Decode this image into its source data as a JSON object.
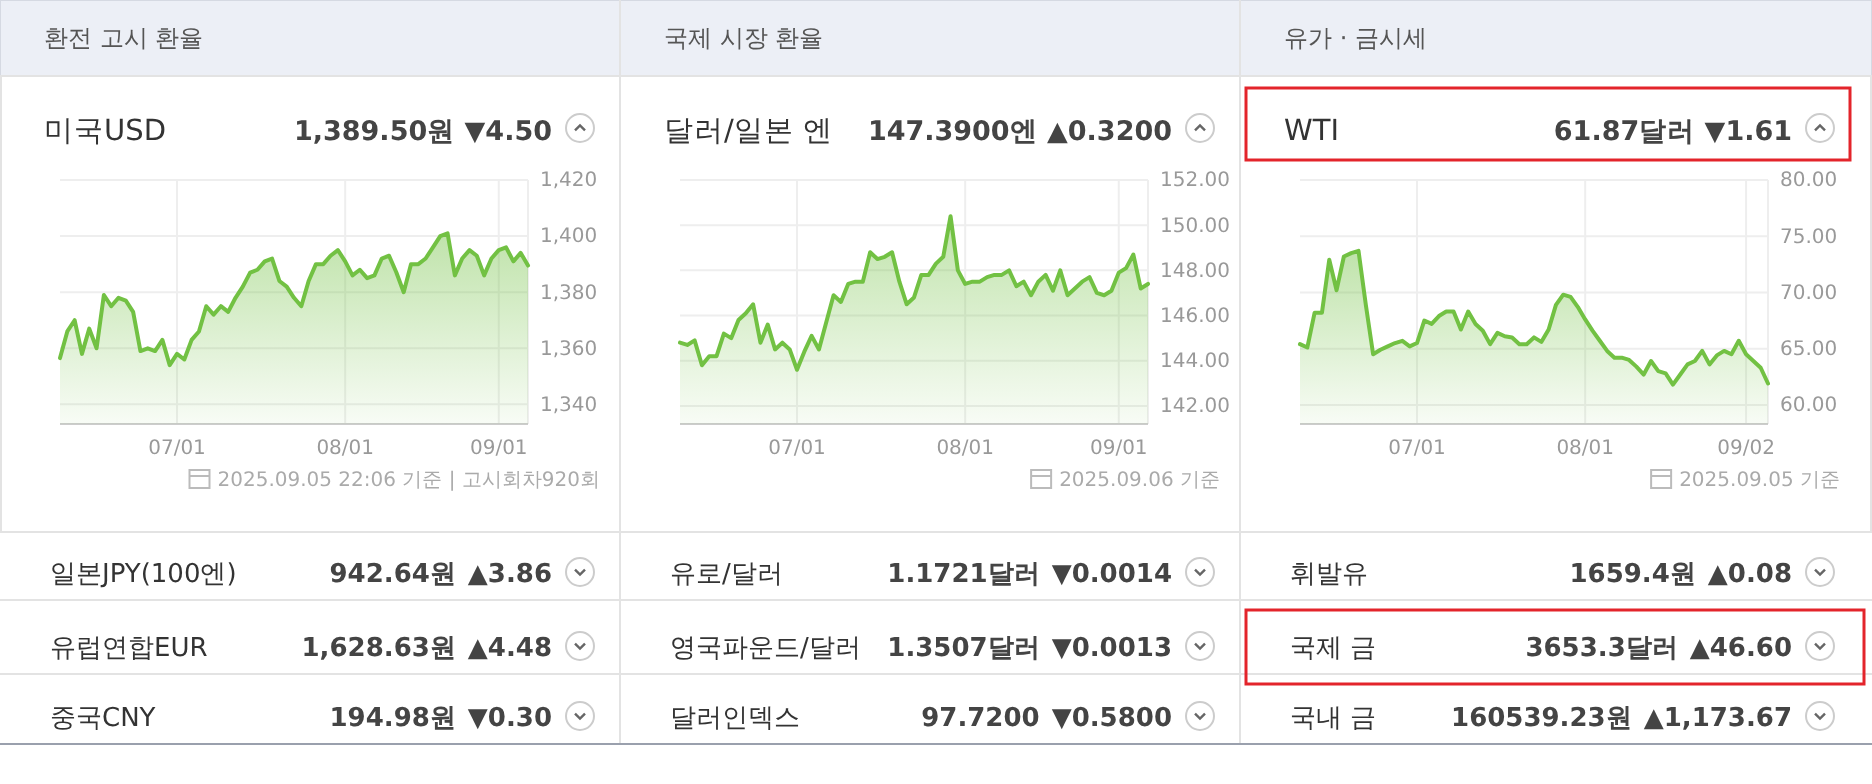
{
  "chart_data": [
    {
      "type": "area",
      "title": "미국USD",
      "subtitle": "1,389.50원 ▼4.50",
      "annotations": [
        "환전 고시 환율",
        "2025.09.05 22:06 기준 | 고시회차920회"
      ],
      "categories": [
        null,
        null,
        null,
        null,
        null,
        null,
        null,
        null,
        null,
        null,
        null,
        null,
        null,
        null,
        null,
        null,
        "07/01",
        null,
        null,
        null,
        null,
        null,
        null,
        null,
        null,
        null,
        null,
        null,
        null,
        null,
        null,
        null,
        null,
        null,
        null,
        null,
        null,
        null,
        null,
        "08/01",
        null,
        null,
        null,
        null,
        null,
        null,
        null,
        null,
        null,
        null,
        null,
        null,
        null,
        null,
        null,
        null,
        null,
        null,
        null,
        null,
        "09/01",
        null,
        null,
        null,
        null
      ],
      "series": [
        {
          "color": "#72c143",
          "values": [
            1356.5,
            1366,
            1370,
            1358,
            1367,
            1360,
            1379,
            1375,
            1378,
            1377,
            1373,
            1359,
            1360,
            1359,
            1363,
            1354,
            1358,
            1356,
            1363,
            1366,
            1375,
            1372,
            1375,
            1373,
            1378,
            1382,
            1387,
            1388,
            1391,
            1392,
            1384,
            1382,
            1378,
            1375,
            1384,
            1390,
            1390,
            1393,
            1395,
            1391,
            1386,
            1388,
            1385,
            1386,
            1392,
            1393,
            1387,
            1380,
            1390,
            1390,
            1392,
            1396,
            1400,
            1401,
            1386,
            1392,
            1395,
            1393,
            1386,
            1392,
            1395,
            1396,
            1391,
            1394,
            1389.5
          ]
        }
      ],
      "ylim": [
        1333,
        1420
      ],
      "yticks": [
        {
          "value": 1340,
          "label": "1,340"
        },
        {
          "value": 1360,
          "label": "1,360"
        },
        {
          "value": 1380,
          "label": "1,380"
        },
        {
          "value": 1400,
          "label": "1,400"
        },
        {
          "value": 1420,
          "label": "1,420"
        }
      ],
      "grid": true
    },
    {
      "type": "area",
      "title": "달러/일본 엔",
      "subtitle": "147.3900엔 ▲0.3200",
      "annotations": [
        "국제 시장 환율",
        "2025.09.06 기준"
      ],
      "categories": [
        null,
        null,
        null,
        null,
        null,
        null,
        null,
        null,
        null,
        null,
        null,
        null,
        null,
        null,
        null,
        null,
        "07/01",
        null,
        null,
        null,
        null,
        null,
        null,
        null,
        null,
        null,
        null,
        null,
        null,
        null,
        null,
        null,
        null,
        null,
        null,
        null,
        null,
        null,
        null,
        "08/01",
        null,
        null,
        null,
        null,
        null,
        null,
        null,
        null,
        null,
        null,
        null,
        null,
        null,
        null,
        null,
        null,
        null,
        null,
        null,
        null,
        "09/01",
        null,
        null,
        null,
        null
      ],
      "series": [
        {
          "color": "#72c143",
          "values": [
            144.8,
            144.7,
            144.9,
            143.8,
            144.2,
            144.2,
            145.2,
            145.0,
            145.8,
            146.1,
            146.5,
            144.8,
            145.6,
            144.5,
            144.8,
            144.5,
            143.6,
            144.4,
            145.1,
            144.5,
            145.7,
            146.9,
            146.6,
            147.4,
            147.5,
            147.5,
            148.8,
            148.5,
            148.6,
            148.8,
            147.5,
            146.5,
            146.8,
            147.8,
            147.8,
            148.3,
            148.6,
            150.4,
            148.0,
            147.4,
            147.5,
            147.5,
            147.7,
            147.8,
            147.8,
            148.0,
            147.3,
            147.5,
            146.9,
            147.5,
            147.8,
            147.1,
            148.0,
            146.9,
            147.2,
            147.5,
            147.7,
            147.0,
            146.9,
            147.1,
            147.9,
            148.1,
            148.7,
            147.2,
            147.4
          ]
        }
      ],
      "ylim": [
        141.2,
        152
      ],
      "yticks": [
        {
          "value": 142,
          "label": "142.00"
        },
        {
          "value": 144,
          "label": "144.00"
        },
        {
          "value": 146,
          "label": "146.00"
        },
        {
          "value": 148,
          "label": "148.00"
        },
        {
          "value": 150,
          "label": "150.00"
        },
        {
          "value": 152,
          "label": "152.00"
        }
      ],
      "grid": true
    },
    {
      "type": "area",
      "title": "WTI",
      "subtitle": "61.87달러 ▼1.61",
      "annotations": [
        "유가 · 금시세",
        "2025.09.05 기준"
      ],
      "categories": [
        null,
        null,
        null,
        null,
        null,
        null,
        null,
        null,
        null,
        null,
        null,
        null,
        null,
        null,
        null,
        null,
        "07/01",
        null,
        null,
        null,
        null,
        null,
        null,
        null,
        null,
        null,
        null,
        null,
        null,
        null,
        null,
        null,
        null,
        null,
        null,
        null,
        null,
        null,
        null,
        "08/01",
        null,
        null,
        null,
        null,
        null,
        null,
        null,
        null,
        null,
        null,
        null,
        null,
        null,
        null,
        null,
        null,
        null,
        null,
        null,
        null,
        null,
        "09/02",
        null,
        null,
        null
      ],
      "series": [
        {
          "color": "#72c143",
          "values": [
            65.4,
            65.1,
            68.2,
            68.2,
            72.9,
            70.2,
            73.2,
            73.5,
            73.7,
            68.9,
            64.5,
            64.9,
            65.2,
            65.5,
            65.7,
            65.2,
            65.5,
            67.5,
            67.2,
            67.9,
            68.3,
            68.3,
            66.7,
            68.3,
            67.2,
            66.6,
            65.4,
            66.4,
            66.1,
            66.0,
            65.4,
            65.4,
            66.0,
            65.6,
            66.7,
            68.9,
            69.8,
            69.6,
            68.7,
            67.6,
            66.6,
            65.7,
            64.8,
            64.2,
            64.2,
            64.0,
            63.4,
            62.7,
            63.9,
            63.0,
            62.8,
            61.8,
            62.7,
            63.6,
            63.9,
            64.8,
            63.6,
            64.4,
            64.8,
            64.5,
            65.7,
            64.5,
            63.9,
            63.3,
            61.9
          ]
        }
      ],
      "ylim": [
        58.3,
        80
      ],
      "yticks": [
        {
          "value": 60,
          "label": "60.00"
        },
        {
          "value": 65,
          "label": "65.00"
        },
        {
          "value": 70,
          "label": "70.00"
        },
        {
          "value": 75,
          "label": "75.00"
        },
        {
          "value": 80,
          "label": "80.00"
        }
      ],
      "grid": true
    },
    {
      "type": "other",
      "annotations": [
        "일본JPY(100엔)",
        "942.64원",
        "▲3.86",
        "유럽연합EUR",
        "1,628.63원",
        "▲4.48",
        "중국CNY",
        "194.98원",
        "▼0.30",
        "유로/달러",
        "1.1721달러",
        "▼0.0014",
        "영국파운드/달러",
        "1.3507달러",
        "▼0.0013",
        "달러인덱스",
        "97.7200",
        "▼0.5800",
        "휘발유",
        "1659.4원",
        "▲0.08",
        "국제 금",
        "3653.3달러",
        "▲46.60",
        "국내 금",
        "160539.23원",
        "▲1,173.67"
      ]
    }
  ]
}
